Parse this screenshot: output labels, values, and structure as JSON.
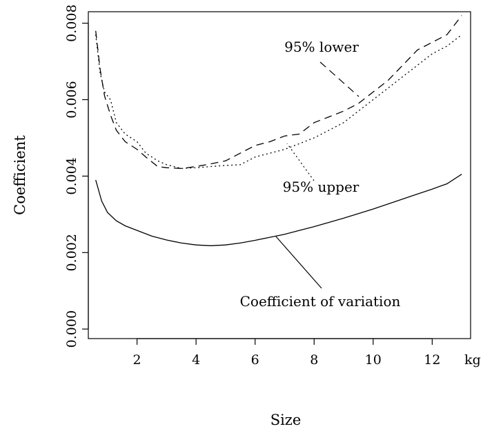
{
  "chart_data": {
    "type": "line",
    "xlabel": "Size",
    "ylabel": "Coefficient",
    "x_unit_label": "kg",
    "xlim": [
      0.35,
      13.3
    ],
    "ylim": [
      -0.00025,
      0.0083
    ],
    "x_ticks": [
      {
        "value": 2,
        "label": "2"
      },
      {
        "value": 4,
        "label": "4"
      },
      {
        "value": 6,
        "label": "6"
      },
      {
        "value": 8,
        "label": "8"
      },
      {
        "value": 10,
        "label": "10"
      },
      {
        "value": 12,
        "label": "12"
      }
    ],
    "y_ticks": [
      {
        "value": 0.0,
        "label": "0.000"
      },
      {
        "value": 0.002,
        "label": "0.002"
      },
      {
        "value": 0.004,
        "label": "0.004"
      },
      {
        "value": 0.006,
        "label": "0.006"
      },
      {
        "value": 0.008,
        "label": "0.008"
      }
    ],
    "series": [
      {
        "name": "Coefficient of variation",
        "style": "solid",
        "x": [
          0.6,
          0.8,
          1.0,
          1.3,
          1.6,
          2.0,
          2.5,
          3.0,
          3.5,
          4.0,
          4.5,
          5.0,
          5.5,
          6.0,
          6.5,
          7.0,
          7.5,
          8.0,
          8.5,
          9.0,
          9.5,
          10.0,
          10.5,
          11.0,
          11.5,
          12.0,
          12.5,
          13.0
        ],
        "values": [
          0.0039,
          0.00335,
          0.00305,
          0.00283,
          0.0027,
          0.00258,
          0.00243,
          0.00233,
          0.00225,
          0.0022,
          0.00218,
          0.0022,
          0.00225,
          0.00232,
          0.0024,
          0.00248,
          0.00258,
          0.00268,
          0.00279,
          0.0029,
          0.00302,
          0.00314,
          0.00327,
          0.0034,
          0.00353,
          0.00366,
          0.0038,
          0.00405
        ]
      },
      {
        "name": "95% lower",
        "style": "dashed",
        "x": [
          0.6,
          0.75,
          0.9,
          1.1,
          1.3,
          1.6,
          2.0,
          2.3,
          2.7,
          3.0,
          3.5,
          4.0,
          4.5,
          5.0,
          5.5,
          6.0,
          6.5,
          7.0,
          7.5,
          8.0,
          8.5,
          9.0,
          9.5,
          10.0,
          10.5,
          11.0,
          11.5,
          12.0,
          12.5,
          13.0
        ],
        "values": [
          0.0078,
          0.0068,
          0.0061,
          0.0056,
          0.0052,
          0.0049,
          0.0047,
          0.0045,
          0.00425,
          0.00422,
          0.0042,
          0.00425,
          0.00432,
          0.0044,
          0.0046,
          0.0048,
          0.0049,
          0.00505,
          0.0051,
          0.0054,
          0.00555,
          0.0057,
          0.0059,
          0.0062,
          0.0065,
          0.0069,
          0.0073,
          0.0075,
          0.0077,
          0.0082
        ]
      },
      {
        "name": "95% upper",
        "style": "dotted",
        "x": [
          0.6,
          0.75,
          0.9,
          1.1,
          1.3,
          1.6,
          2.0,
          2.3,
          2.7,
          3.0,
          3.5,
          4.0,
          4.5,
          5.0,
          5.5,
          6.0,
          6.5,
          7.0,
          7.5,
          8.0,
          8.5,
          9.0,
          9.5,
          10.0,
          10.5,
          11.0,
          11.5,
          12.0,
          12.5,
          13.0
        ],
        "values": [
          0.0077,
          0.0067,
          0.0062,
          0.006,
          0.0054,
          0.0051,
          0.0049,
          0.0046,
          0.0044,
          0.0043,
          0.0042,
          0.00422,
          0.00425,
          0.00428,
          0.0043,
          0.0045,
          0.0046,
          0.0047,
          0.00485,
          0.005,
          0.0052,
          0.0054,
          0.0057,
          0.006,
          0.0063,
          0.0066,
          0.0069,
          0.0072,
          0.0074,
          0.0077
        ]
      }
    ],
    "annotations": [
      {
        "text": "95% lower",
        "series": "95% lower"
      },
      {
        "text": "95% upper",
        "series": "95% upper"
      },
      {
        "text": "Coefficient of variation",
        "series": "Coefficient of variation"
      }
    ],
    "grid": false,
    "legend": "none"
  }
}
